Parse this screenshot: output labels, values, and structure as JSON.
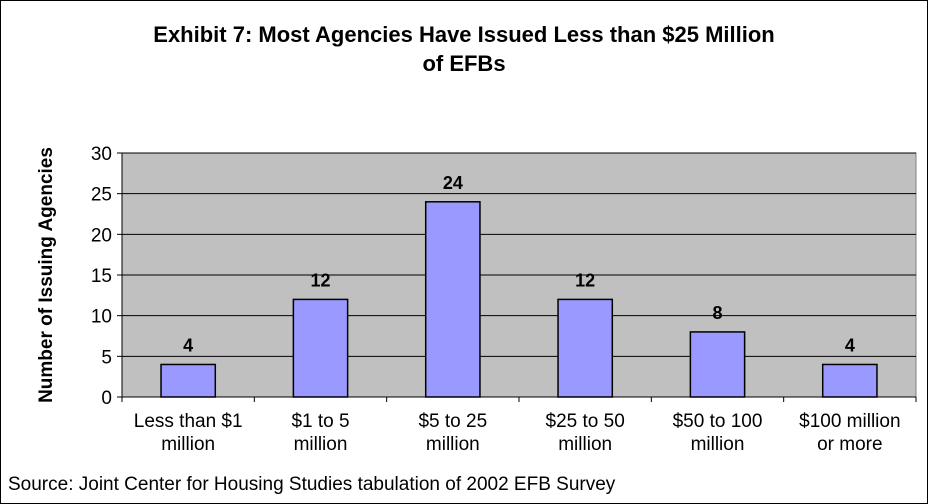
{
  "chart_data": {
    "type": "bar",
    "title_lines": [
      "Exhibit 7:  Most Agencies Have Issued Less than $25 Million",
      "of EFBs"
    ],
    "ylabel": "Number of Issuing Agencies",
    "xlabel": "",
    "categories": [
      [
        "Less than $1",
        "million"
      ],
      [
        "$1 to 5",
        "million"
      ],
      [
        "$5 to 25",
        "million"
      ],
      [
        "$25 to 50",
        "million"
      ],
      [
        "$50 to 100",
        "million"
      ],
      [
        "$100 million",
        "or more"
      ]
    ],
    "values": [
      4,
      12,
      24,
      12,
      8,
      4
    ],
    "data_labels": [
      "4",
      "12",
      "24",
      "12",
      "8",
      "4"
    ],
    "ylim": [
      0,
      30
    ],
    "yticks": [
      "0",
      "5",
      "10",
      "15",
      "20",
      "25",
      "30"
    ],
    "grid": true,
    "colors": {
      "bar": "#9999ff",
      "plot_bg": "#c0c0c0",
      "grid": "#000000"
    }
  },
  "source": "Source:  Joint Center for Housing Studies tabulation of 2002 EFB Survey"
}
